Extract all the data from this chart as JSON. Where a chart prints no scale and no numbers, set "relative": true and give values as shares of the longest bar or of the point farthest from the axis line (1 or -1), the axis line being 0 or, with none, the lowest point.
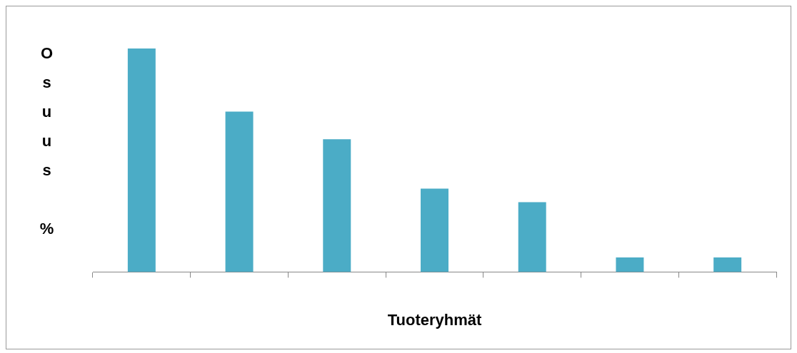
{
  "chart_data": {
    "type": "bar",
    "xlabel": "Tuoteryhmät",
    "ylabel": "Osuus %",
    "categories": [
      null,
      null,
      null,
      null,
      null,
      null,
      null
    ],
    "values": [
      1,
      0.718,
      0.594,
      0.373,
      0.312,
      0.065,
      0.065
    ],
    "color": "#4bacc6",
    "relative": true,
    "grid": false,
    "legend": false
  }
}
